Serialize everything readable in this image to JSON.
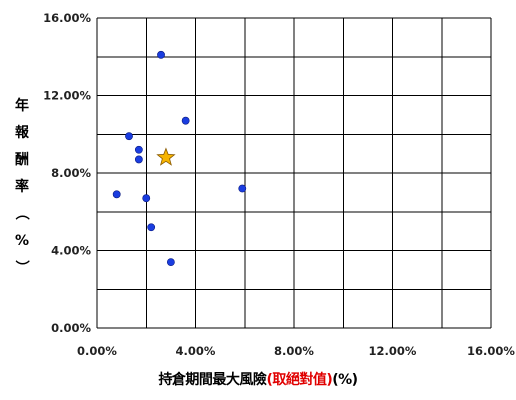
{
  "chart_data": {
    "type": "scatter",
    "xlabel_parts": [
      "持倉期間最大風險",
      "(取絕對值)",
      "(%)"
    ],
    "ylabel": "年報酬率（%）",
    "xlim": [
      0,
      16
    ],
    "ylim": [
      0,
      16
    ],
    "x_ticks": [
      "0.00%",
      "4.00%",
      "8.00%",
      "12.00%",
      "16.00%"
    ],
    "y_ticks": [
      "0.00%",
      "4.00%",
      "8.00%",
      "12.00%",
      "16.00%"
    ],
    "grid": true,
    "colors": {
      "points": "#1a3de0",
      "highlight": "#f6b400",
      "highlight_edge": "#8a5a00",
      "grid": "#000000",
      "xlabel_accent": "#e00000"
    },
    "series": [
      {
        "marker": "circle",
        "points": [
          {
            "x": 2.6,
            "y": 14.1
          },
          {
            "x": 3.6,
            "y": 10.7
          },
          {
            "x": 1.3,
            "y": 9.9
          },
          {
            "x": 1.7,
            "y": 9.2
          },
          {
            "x": 1.7,
            "y": 8.7
          },
          {
            "x": 0.8,
            "y": 6.9
          },
          {
            "x": 2.0,
            "y": 6.7
          },
          {
            "x": 5.9,
            "y": 7.2
          },
          {
            "x": 2.2,
            "y": 5.2
          },
          {
            "x": 3.0,
            "y": 3.4
          }
        ]
      },
      {
        "marker": "star",
        "points": [
          {
            "x": 2.8,
            "y": 8.8
          }
        ]
      }
    ]
  }
}
